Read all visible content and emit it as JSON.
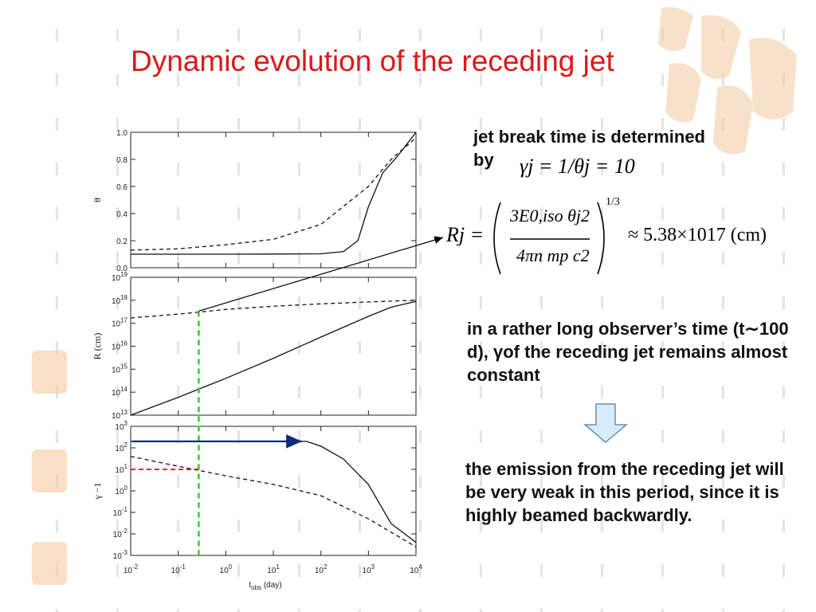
{
  "slide": {
    "title": "Dynamic evolution of the receding jet",
    "text_jet_break_1": "jet break time is determined",
    "text_jet_break_2": "by",
    "text_long_time": "in a rather long observer’s time (t∼100 d), γof the receding jet remains almost constant",
    "text_emission": "the emission from the receding jet will be very weak in this period, since it is highly beamed backwardly."
  },
  "equations": {
    "gamma_eq": "γj = 1/θj = 10",
    "r_eq_lhs": "Rj",
    "r_eq_num": "3E0,iso θj2",
    "r_eq_den": "4πn mp c2",
    "r_eq_power": "1/3",
    "r_eq_rhs": "≈ 5.38×1017 (cm)"
  },
  "colors": {
    "title": "#d91a1a",
    "green_marker": "#1adc1a",
    "red_marker": "#e01010",
    "blue_arrow": "#102a7a",
    "down_arrow_fill": "#d8ecfb",
    "down_arrow_stroke": "#6a8fb0",
    "watermark": "#f4c9a0"
  },
  "chart_data": [
    {
      "type": "line",
      "x_log": true,
      "xlim": [
        0.01,
        10000
      ],
      "ylim": [
        0,
        1.0
      ],
      "ylabel": "θ",
      "yticks": [
        "0.0",
        "0.2",
        "0.4",
        "0.6",
        "0.8",
        "1.0"
      ],
      "series": [
        {
          "style": "solid",
          "x": [
            0.01,
            0.1,
            1,
            10,
            100,
            300,
            600,
            1000,
            2000,
            4000,
            10000
          ],
          "y": [
            0.1,
            0.1,
            0.1,
            0.101,
            0.103,
            0.12,
            0.2,
            0.45,
            0.7,
            0.82,
            1.0
          ]
        },
        {
          "style": "dashed",
          "x": [
            0.01,
            0.1,
            1,
            10,
            100,
            1000,
            3000,
            10000
          ],
          "y": [
            0.13,
            0.14,
            0.17,
            0.21,
            0.32,
            0.6,
            0.8,
            0.96
          ]
        }
      ]
    },
    {
      "type": "line",
      "x_log": true,
      "y_log": true,
      "xlim": [
        0.01,
        10000
      ],
      "ylim": [
        10000000000000.0,
        1e+19
      ],
      "ylabel": "R (cm)",
      "yticks": [
        "10^13",
        "10^14",
        "10^15",
        "10^16",
        "10^17",
        "10^18",
        "10^19"
      ],
      "series": [
        {
          "style": "solid",
          "x": [
            0.01,
            0.1,
            1,
            10,
            100,
            1000,
            3000,
            10000
          ],
          "y": [
            10000000000000.0,
            60000000000000.0,
            400000000000000.0,
            3000000000000000.0,
            2.5e+16,
            2e+17,
            5e+17,
            9e+17
          ]
        },
        {
          "style": "dashed",
          "x": [
            0.01,
            0.1,
            1,
            10,
            100,
            1000,
            10000
          ],
          "y": [
            1.7e+17,
            2.5e+17,
            4e+17,
            5.5e+17,
            7e+17,
            8.5e+17,
            1e+18
          ]
        }
      ]
    },
    {
      "type": "line",
      "x_log": true,
      "y_log": true,
      "xlim": [
        0.01,
        10000
      ],
      "ylim": [
        0.001,
        1000
      ],
      "ylabel": "γ −1",
      "xlabel": "tobs (day)",
      "xticks": [
        "10^-2",
        "10^-1",
        "10^0",
        "10^1",
        "10^2",
        "10^3",
        "10^4"
      ],
      "yticks": [
        "10^-3",
        "10^-2",
        "10^-1",
        "10^0",
        "10^1",
        "10^2",
        "10^3"
      ],
      "series": [
        {
          "style": "solid",
          "x": [
            0.01,
            1,
            10,
            50,
            100,
            300,
            1000,
            3000,
            10000
          ],
          "y": [
            200,
            200,
            200,
            200,
            120,
            30,
            2,
            0.03,
            0.004
          ]
        },
        {
          "style": "dashed",
          "x": [
            0.01,
            0.1,
            1,
            10,
            100,
            1000,
            10000
          ],
          "y": [
            40,
            14,
            5,
            2,
            0.6,
            0.05,
            0.0025
          ]
        }
      ]
    }
  ]
}
